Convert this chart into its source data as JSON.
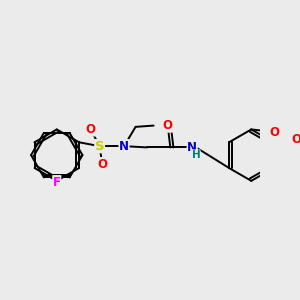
{
  "bg_color": "#ebebeb",
  "atom_colors": {
    "C": "#000000",
    "N": "#0000cc",
    "O": "#ff0000",
    "S": "#cccc00",
    "F": "#ff00ff",
    "H": "#008080"
  },
  "bond_color": "#000000",
  "bond_width": 1.4,
  "font_size": 8.5
}
